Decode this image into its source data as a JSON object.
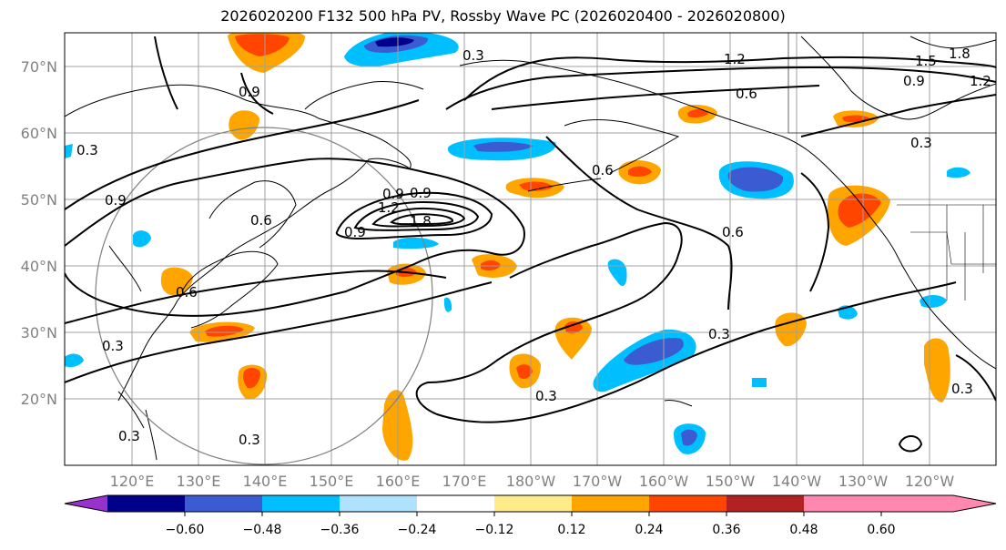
{
  "title": "2026020200 F132 500 hPa PV, Rossby Wave PC (2026020400 - 2026020800)",
  "lat_labels": [
    "70°N",
    "60°N",
    "50°N",
    "40°N",
    "30°N",
    "20°N"
  ],
  "lon_labels": [
    "120°E",
    "130°E",
    "140°E",
    "150°E",
    "160°E",
    "170°E",
    "180°W",
    "170°W",
    "160°W",
    "150°W",
    "140°W",
    "130°W",
    "120°W"
  ],
  "colorbar": {
    "colors": [
      "#9932cc",
      "#00008b",
      "#3a5bd1",
      "#00bfff",
      "#aee2ff",
      "#ffffff",
      "#ffeb8a",
      "#ffa500",
      "#ff4500",
      "#b22222",
      "#ff88b0"
    ],
    "tick_labels": [
      "−0.60",
      "−0.48",
      "−0.36",
      "−0.24",
      "−0.12",
      "0.12",
      "0.24",
      "0.36",
      "0.48",
      "0.60"
    ]
  },
  "contour_labels": [
    "0.3",
    "1.2",
    "1.5",
    "1.8",
    "0.9",
    "1.2",
    "0.6",
    "0.9",
    "0.3",
    "0.9",
    "0.6",
    "0.9",
    "1.2",
    "1.8",
    "0.6",
    "0.6",
    "0.6",
    "0.9",
    "0.3",
    "0.3",
    "0.3",
    "0.3",
    "0.3",
    "0.3",
    "0.3",
    "0.9"
  ]
}
